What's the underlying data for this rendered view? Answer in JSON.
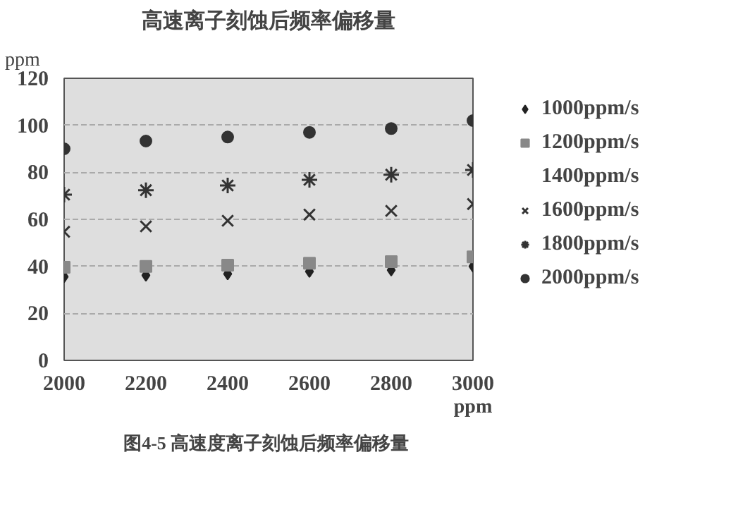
{
  "chart_data": {
    "type": "scatter",
    "title": "高速离子刻蚀后频率偏移量",
    "xlabel": "ppm",
    "ylabel": "ppm",
    "x": [
      2000,
      2200,
      2400,
      2600,
      2800,
      3000
    ],
    "series": [
      {
        "name": "1000ppm/s",
        "color": "#222222",
        "marker": "diamond",
        "values": [
          35.6,
          36.2,
          36.8,
          37.8,
          38.4,
          40
        ]
      },
      {
        "name": "1200ppm/s",
        "color": "#888888",
        "marker": "square",
        "values": [
          39.6,
          40,
          40.5,
          41.3,
          42,
          44
        ]
      },
      {
        "name": "1400ppm/s",
        "marker": "none",
        "values": [
          null,
          null,
          null,
          null,
          null,
          null
        ]
      },
      {
        "name": "1600ppm/s",
        "color": "#333333",
        "marker": "x",
        "values": [
          54.7,
          57,
          59.4,
          62,
          63.6,
          66.5
        ]
      },
      {
        "name": "1800ppm/s",
        "color": "#333333",
        "marker": "cross",
        "values": [
          70.5,
          72.4,
          74.4,
          76.8,
          79,
          81
        ]
      },
      {
        "name": "2000ppm/s",
        "color": "#333333",
        "marker": "circle",
        "values": [
          90,
          93.3,
          95,
          97,
          98.6,
          102
        ]
      }
    ],
    "xlim": [
      2000,
      3000
    ],
    "xticks": [
      2000,
      2200,
      2400,
      2600,
      2800,
      3000
    ],
    "ylim": [
      0,
      120
    ],
    "yticks": [
      0,
      20,
      40,
      60,
      80,
      100,
      120
    ],
    "grid": "y",
    "legend": "right",
    "annotations": [
      "图4-5  高速度离子刻蚀后频率偏移量"
    ]
  }
}
